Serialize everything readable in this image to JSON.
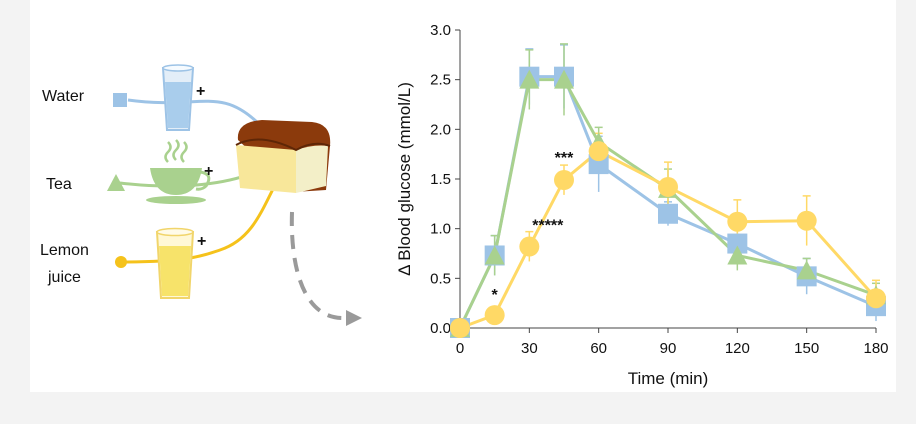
{
  "illustration": {
    "labels": [
      {
        "key": "water",
        "text": "Water"
      },
      {
        "key": "tea",
        "text": "Tea"
      },
      {
        "key": "lemon_1",
        "text": "Lemon"
      },
      {
        "key": "lemon_2",
        "text": "juice"
      }
    ],
    "plus_sign": "+"
  },
  "chart_data": {
    "type": "line",
    "xlabel": "Time (min)",
    "ylabel": "Δ Blood glucose (mmol/L)",
    "x": [
      0,
      15,
      30,
      45,
      60,
      90,
      120,
      150,
      180
    ],
    "x_ticks": [
      0,
      30,
      60,
      90,
      120,
      150,
      180
    ],
    "xlim": [
      0,
      180
    ],
    "ylim": [
      0,
      3
    ],
    "y_ticks": [
      "0.0",
      "0.5",
      "1.0",
      "1.5",
      "2.0",
      "2.5",
      "3.0"
    ],
    "grid": false,
    "series": [
      {
        "key": "water",
        "marker": "square",
        "color": "#9dc3e6",
        "values": [
          0,
          0.73,
          2.53,
          2.53,
          1.65,
          1.15,
          0.85,
          0.52,
          0.22
        ],
        "errors": [
          0,
          0.2,
          0.28,
          0.32,
          0.28,
          0.12,
          0.2,
          0.18,
          0.15
        ]
      },
      {
        "key": "tea",
        "marker": "triangle",
        "color": "#a9d18e",
        "values": [
          0,
          0.73,
          2.5,
          2.5,
          1.87,
          1.4,
          0.73,
          0.58,
          0.33
        ],
        "errors": [
          0,
          0.2,
          0.3,
          0.36,
          0.15,
          0.2,
          0.15,
          0.12,
          0.12
        ]
      },
      {
        "key": "lemon_juice",
        "marker": "circle",
        "color": "#ffd966",
        "values": [
          0,
          0.13,
          0.82,
          1.49,
          1.78,
          1.42,
          1.07,
          1.08,
          0.3
        ],
        "errors": [
          0,
          0.08,
          0.15,
          0.15,
          0.18,
          0.25,
          0.22,
          0.25,
          0.18
        ]
      }
    ],
    "annotations": [
      {
        "text": "*",
        "x": 15,
        "y": 0.28
      },
      {
        "text": "*****",
        "x": 38,
        "y": 0.98
      },
      {
        "text": "***",
        "x": 45,
        "y": 1.66
      }
    ]
  }
}
